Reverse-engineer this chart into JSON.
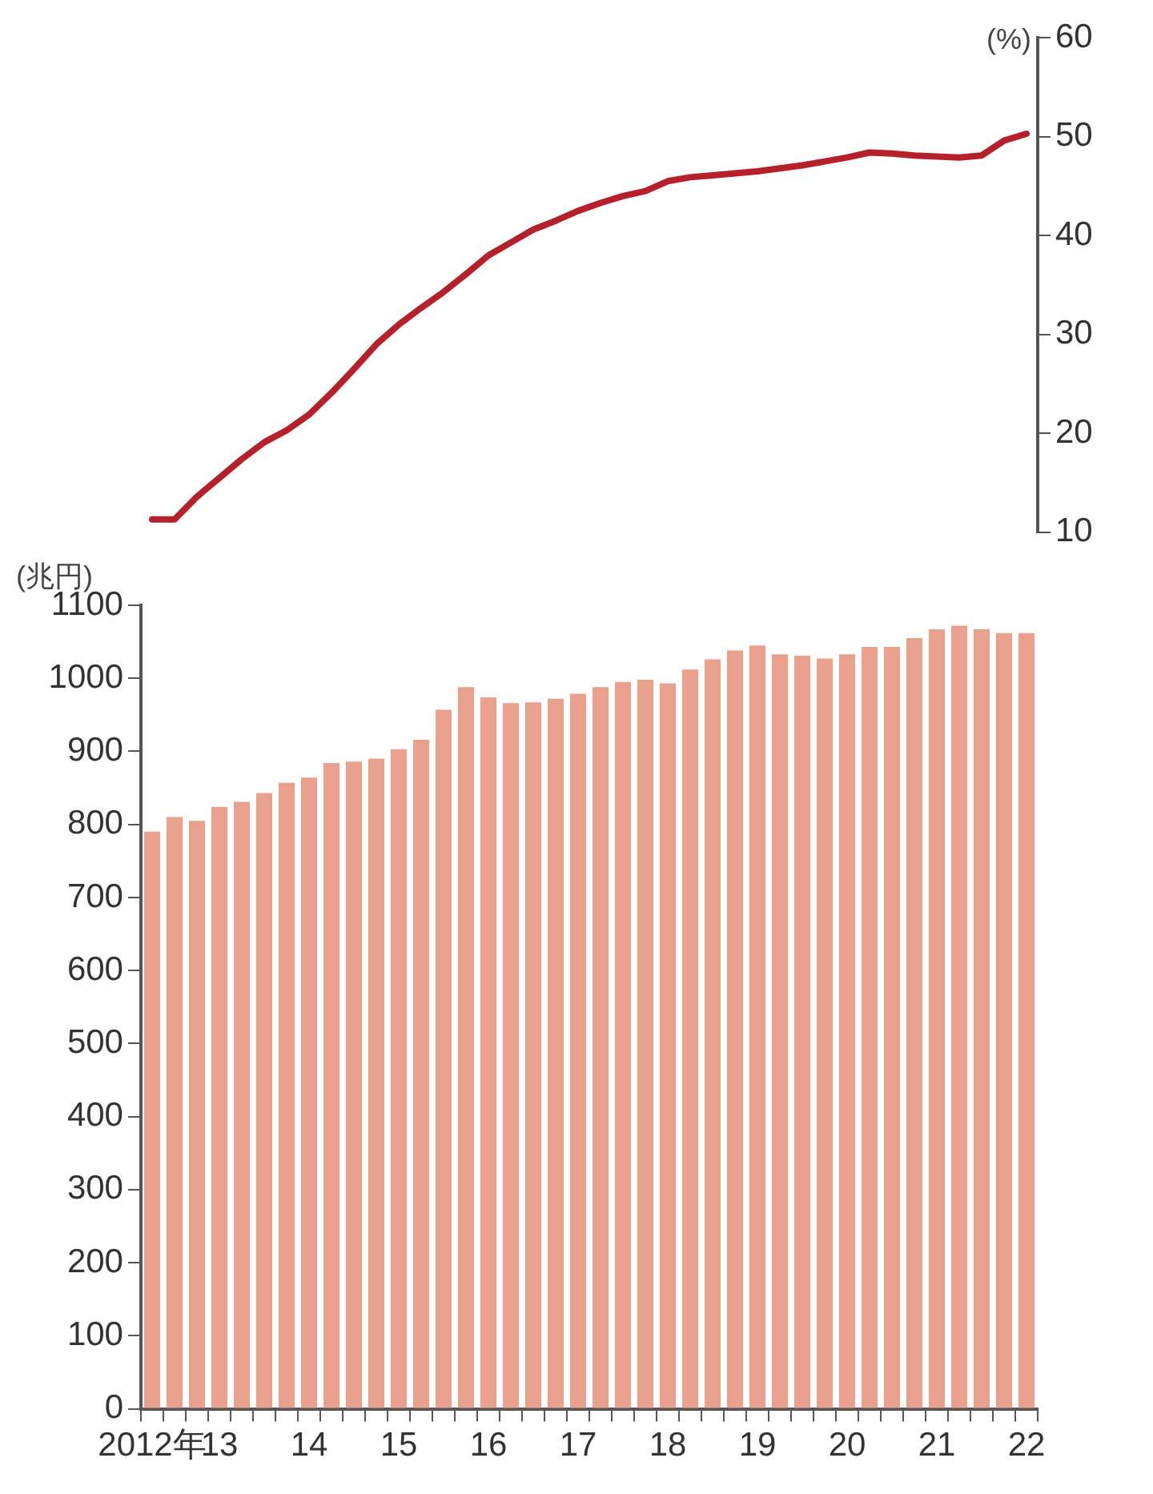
{
  "chart_data": [
    {
      "type": "line",
      "ylabel": "(%)",
      "tick_labels": "y",
      "categories": [
        null,
        null,
        null,
        null,
        null,
        null,
        null,
        null,
        null,
        null,
        null,
        null,
        null,
        null,
        null,
        null,
        null,
        null,
        null,
        null,
        null,
        null,
        null,
        null,
        null,
        null,
        null,
        null,
        null,
        null,
        null,
        null,
        null,
        null,
        null,
        null,
        null,
        null,
        null,
        null
      ],
      "series": [
        {
          "color": "#b5202a",
          "values": [
            11.3,
            11.3,
            13.6,
            15.5,
            17.4,
            19.1,
            20.3,
            21.9,
            24.1,
            26.5,
            29,
            31,
            32.7,
            34.3,
            36.1,
            38,
            39.3,
            40.6,
            41.5,
            42.5,
            43.3,
            44,
            44.5,
            45.5,
            45.9,
            46.1,
            46.3,
            46.5,
            46.8,
            47.1,
            47.5,
            47.9,
            48.4,
            48.3,
            48.1,
            48,
            47.9,
            48.1,
            49.6,
            50.3
          ]
        }
      ],
      "ylim": [
        10,
        60
      ],
      "yticks": [
        10,
        20,
        30,
        40,
        50,
        60
      ],
      "grid": false,
      "legend": false,
      "marker": "none"
    },
    {
      "type": "bar",
      "ylabel": "(兆円)",
      "categories": [
        "2012年",
        null,
        null,
        "13",
        null,
        null,
        null,
        "14",
        null,
        null,
        null,
        "15",
        null,
        null,
        null,
        "16",
        null,
        null,
        null,
        "17",
        null,
        null,
        null,
        "18",
        null,
        null,
        null,
        "19",
        null,
        null,
        null,
        "20",
        null,
        null,
        null,
        "21",
        null,
        null,
        null,
        "22"
      ],
      "series": [
        {
          "color": "#e9a08c",
          "values": [
            790,
            810,
            805,
            824,
            831,
            843,
            857,
            864,
            884,
            886,
            890,
            903,
            916,
            957,
            988,
            974,
            966,
            967,
            972,
            979,
            988,
            995,
            998,
            993,
            1012,
            1026,
            1038,
            1045,
            1033,
            1031,
            1027,
            1033,
            1043,
            1043,
            1055,
            1067,
            1072,
            1067,
            1062,
            1062
          ]
        }
      ],
      "ylim": [
        0,
        1100
      ],
      "yticks": [
        0,
        100,
        200,
        300,
        400,
        500,
        600,
        700,
        800,
        900,
        1000,
        1100
      ],
      "grid": false,
      "legend": false
    }
  ]
}
